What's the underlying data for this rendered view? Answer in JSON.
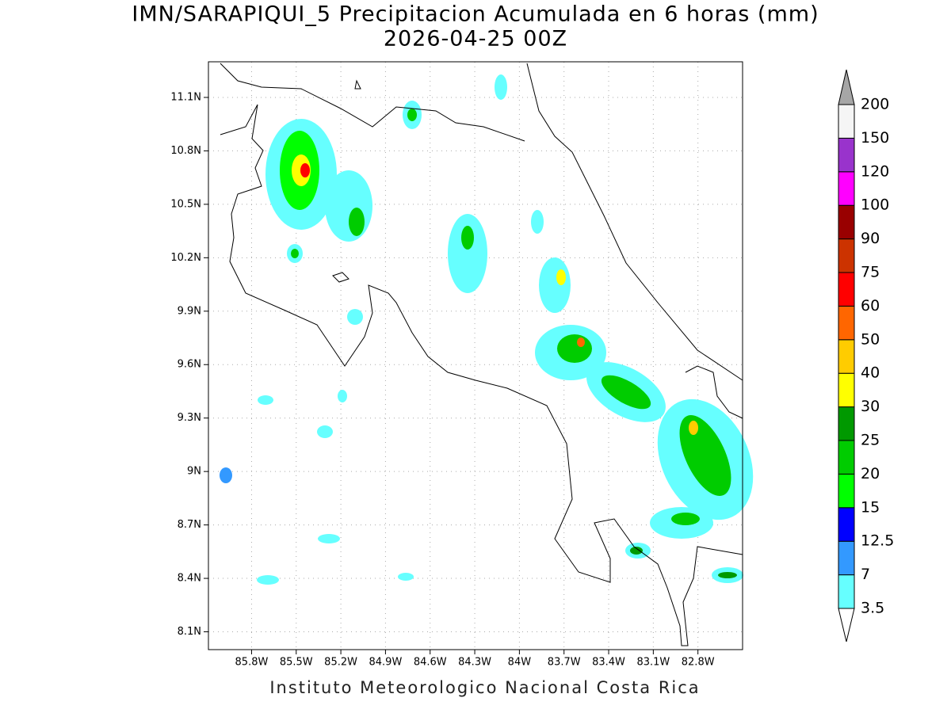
{
  "title": "IMN/SARAPIQUI_5 Precipitacion Acumulada en 6 horas (mm)",
  "subtitle": "2026-04-25 00Z",
  "map": {
    "lonlim": [
      -86.09,
      -82.5
    ],
    "latlim": [
      8.0,
      11.3
    ],
    "xticks": [
      {
        "value": -85.8,
        "label": "85.8W"
      },
      {
        "value": -85.5,
        "label": "85.5W"
      },
      {
        "value": -85.2,
        "label": "85.2W"
      },
      {
        "value": -84.9,
        "label": "84.9W"
      },
      {
        "value": -84.6,
        "label": "84.6W"
      },
      {
        "value": -84.3,
        "label": "84.3W"
      },
      {
        "value": -84.0,
        "label": "84W"
      },
      {
        "value": -83.7,
        "label": "83.7W"
      },
      {
        "value": -83.4,
        "label": "83.4W"
      },
      {
        "value": -83.1,
        "label": "83.1W"
      },
      {
        "value": -82.8,
        "label": "82.8W"
      }
    ],
    "yticks": [
      {
        "value": 8.1,
        "label": "8.1N"
      },
      {
        "value": 8.4,
        "label": "8.4N"
      },
      {
        "value": 8.7,
        "label": "8.7N"
      },
      {
        "value": 9.0,
        "label": "9N"
      },
      {
        "value": 9.3,
        "label": "9.3N"
      },
      {
        "value": 9.6,
        "label": "9.6N"
      },
      {
        "value": 9.9,
        "label": "9.9N"
      },
      {
        "value": 10.2,
        "label": "10.2N"
      },
      {
        "value": 10.5,
        "label": "10.5N"
      },
      {
        "value": 10.8,
        "label": "10.8N"
      },
      {
        "value": 11.1,
        "label": "11.1N"
      }
    ],
    "grid": true
  },
  "colorbar": {
    "levels": [
      3.5,
      7,
      12.5,
      15,
      20,
      25,
      30,
      40,
      50,
      60,
      75,
      90,
      100,
      120,
      150,
      200
    ],
    "colors": [
      "#66ffff",
      "#3399ff",
      "#0000ff",
      "#00ff00",
      "#00cc00",
      "#009900",
      "#ffff00",
      "#ffcc00",
      "#ff6600",
      "#ff0000",
      "#cc3300",
      "#990000",
      "#ff00ff",
      "#9933cc",
      "#f5f5f5"
    ],
    "over_color": "#a6a6a6",
    "under_color": "#ffffff"
  },
  "footer": "Instituto Meteorologico Nacional Costa Rica"
}
